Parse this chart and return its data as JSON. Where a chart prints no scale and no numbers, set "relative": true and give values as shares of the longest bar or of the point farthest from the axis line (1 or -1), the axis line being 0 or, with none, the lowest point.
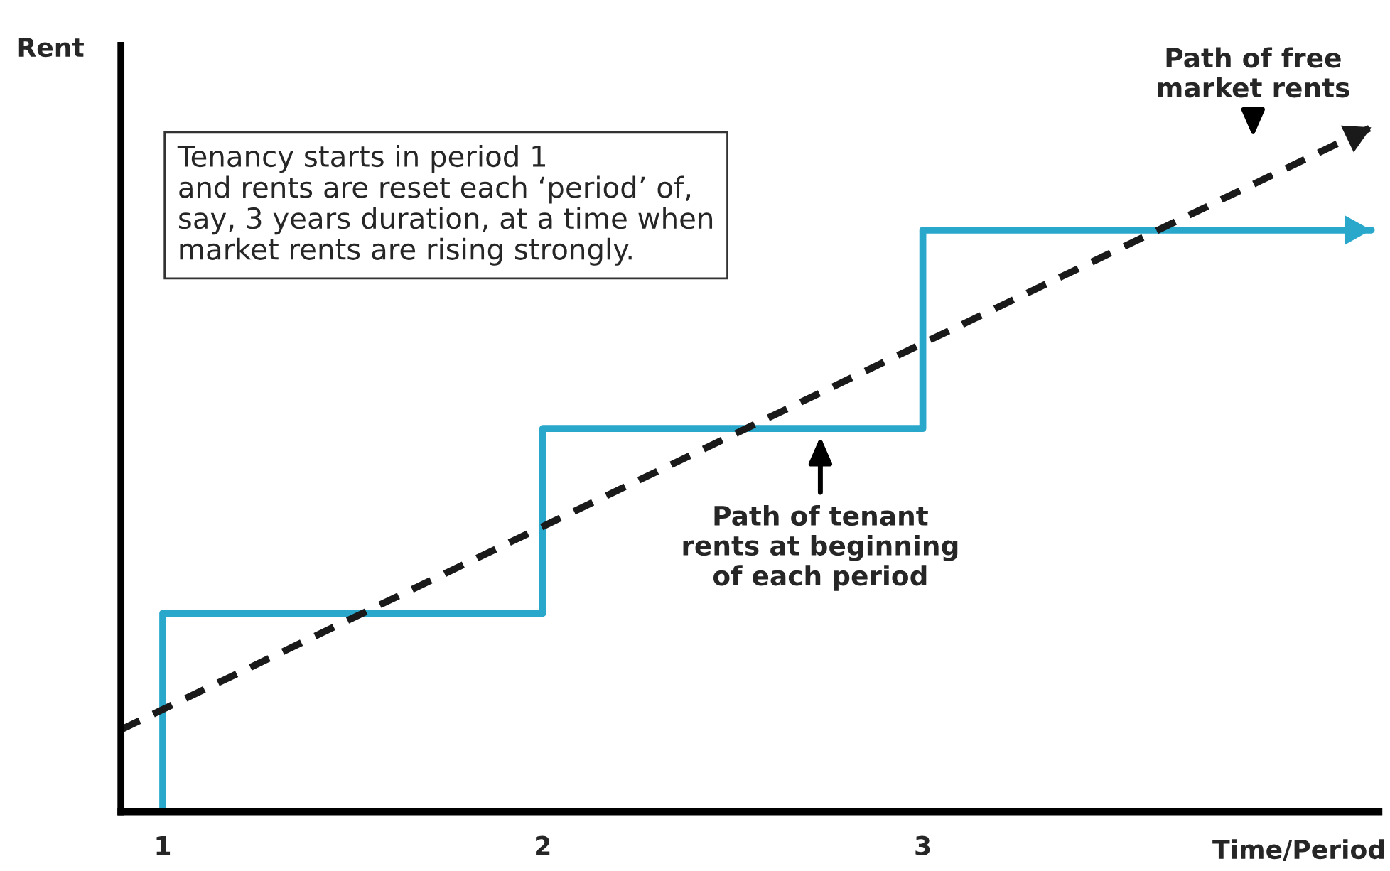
{
  "chart_data": {
    "type": "line",
    "relative": true,
    "xlabel": "Time/Period",
    "ylabel": "Rent",
    "xlim": [
      0.89,
      4.2
    ],
    "xticks": [
      1,
      2,
      3
    ],
    "tick_labels": "x",
    "grid": false,
    "legend": false,
    "series": [
      {
        "type": "step",
        "color": "#29a8cc",
        "x": [
          1,
          1,
          2,
          3,
          4.18
        ],
        "values": [
          0,
          0.29,
          0.56,
          0.85,
          0.85
        ],
        "line_style": "solid"
      },
      {
        "color": "#1a1a1a",
        "x": [
          0.89,
          4.18
        ],
        "values": [
          0.12,
          1
        ],
        "line_style": "dashed"
      }
    ],
    "annotations": [
      "Tenancy starts in period 1\nand rents are reset each ‘period’ of,\nsay, 3 years duration, at a time when\nmarket rents are rising strongly.",
      "Path of free\nmarket rents",
      "Path of tenant\nrents at beginning\nof each period"
    ]
  }
}
